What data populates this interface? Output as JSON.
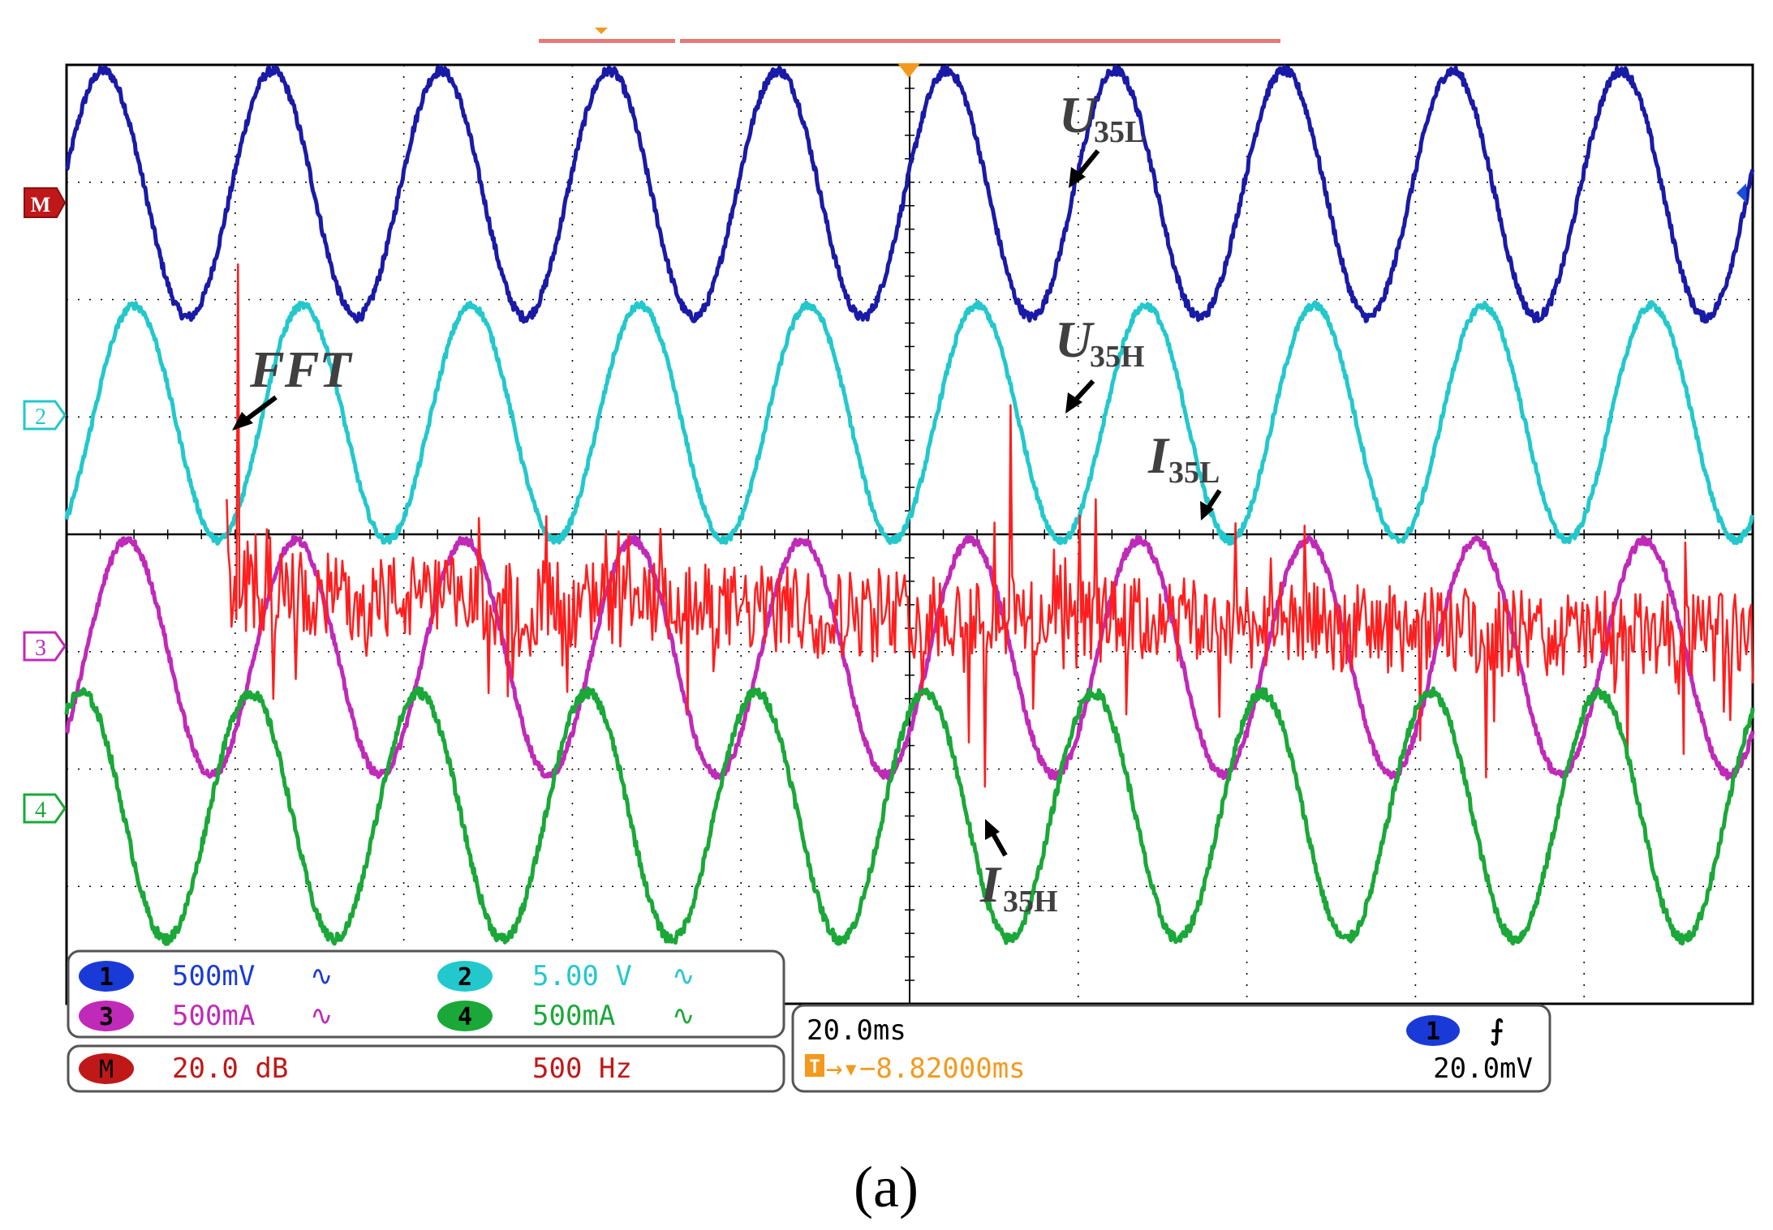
{
  "figure_caption": "(a)",
  "colors": {
    "ch1": "#1a1aa8",
    "ch2": "#22c8cc",
    "ch3": "#c02ab8",
    "ch4": "#1aa838",
    "math": "#ff1e1e",
    "math_marker": "#c01818",
    "trigger": "#f39a1e",
    "grid": "#000000",
    "record_bar": "#e87878"
  },
  "channel_markers": {
    "math": "M",
    "ch2": "2",
    "ch3": "3",
    "ch4": "4"
  },
  "settings_panel": {
    "ch1": {
      "num": "1",
      "scale": "500mV",
      "coupling": "∿"
    },
    "ch2": {
      "num": "2",
      "scale": "5.00 V",
      "coupling": "∿"
    },
    "ch3": {
      "num": "3",
      "scale": "500mA",
      "coupling": "∿"
    },
    "ch4": {
      "num": "4",
      "scale": "500mA",
      "coupling": "∿"
    },
    "math": {
      "label": "M",
      "scale": "20.0 dB",
      "span": "500 Hz"
    }
  },
  "timebase_panel": {
    "time_per_div": "20.0ms",
    "trigger_source": "1",
    "trigger_slope": "⨍",
    "trigger_position": "→▾−8.82000ms",
    "trigger_icon": "T",
    "trigger_level": "20.0mV"
  },
  "annotations": {
    "fft": "FFT",
    "u35l_main": "U",
    "u35l_sub": "35L",
    "u35h_main": "U",
    "u35h_sub": "35H",
    "i35l_main": "I",
    "i35l_sub": "35L",
    "i35h_main": "I",
    "i35h_sub": "35H"
  },
  "chart_data": {
    "type": "line",
    "title": "",
    "xlabel": "",
    "ylabel": "",
    "grid": true,
    "x_divisions": 10,
    "y_divisions": 8,
    "time_per_div_ms": 20.0,
    "xlim_ms": [
      0,
      200
    ],
    "ylim_div": [
      0,
      8
    ],
    "series": [
      {
        "name": "U35L",
        "channel": "1",
        "scale": "500mV/div",
        "cycles": 10,
        "center_div": 6.9,
        "amplitude_div": 1.05,
        "phase_cycles": 0.22,
        "noise_div": 0.04
      },
      {
        "name": "U35H",
        "channel": "2",
        "scale": "5.00 V/div",
        "cycles": 10,
        "center_div": 4.95,
        "amplitude_div": 1.0,
        "phase_cycles": 0.4,
        "noise_div": 0.03
      },
      {
        "name": "I35L",
        "channel": "3",
        "scale": "500mA/div",
        "cycles": 10,
        "center_div": 2.95,
        "amplitude_div": 1.0,
        "phase_cycles": 0.36,
        "noise_div": 0.035
      },
      {
        "name": "I35H",
        "channel": "4",
        "scale": "500mA/div",
        "cycles": 10,
        "center_div": 1.6,
        "amplitude_div": 1.05,
        "phase_cycles": 0.09,
        "noise_div": 0.045
      }
    ],
    "fft": {
      "name": "FFT",
      "channel": "M",
      "scale": "20.0 dB/div",
      "span": "500 Hz",
      "baseline_div_start": 3.5,
      "baseline_div_end": 3.1,
      "peaks": [
        {
          "x_div": 1.02,
          "height_div": 6.3
        },
        {
          "x_div": 0.92,
          "height_div": 4.3
        },
        {
          "x_div": 1.12,
          "height_div": 4.0
        },
        {
          "x_div": 3.2,
          "height_div": 4.0
        },
        {
          "x_div": 5.6,
          "height_div": 5.1
        },
        {
          "x_div": 5.5,
          "height_div": 4.1
        },
        {
          "x_div": 6.1,
          "height_div": 4.3
        },
        {
          "x_div": 5.45,
          "height_div": 1.85
        }
      ]
    }
  }
}
